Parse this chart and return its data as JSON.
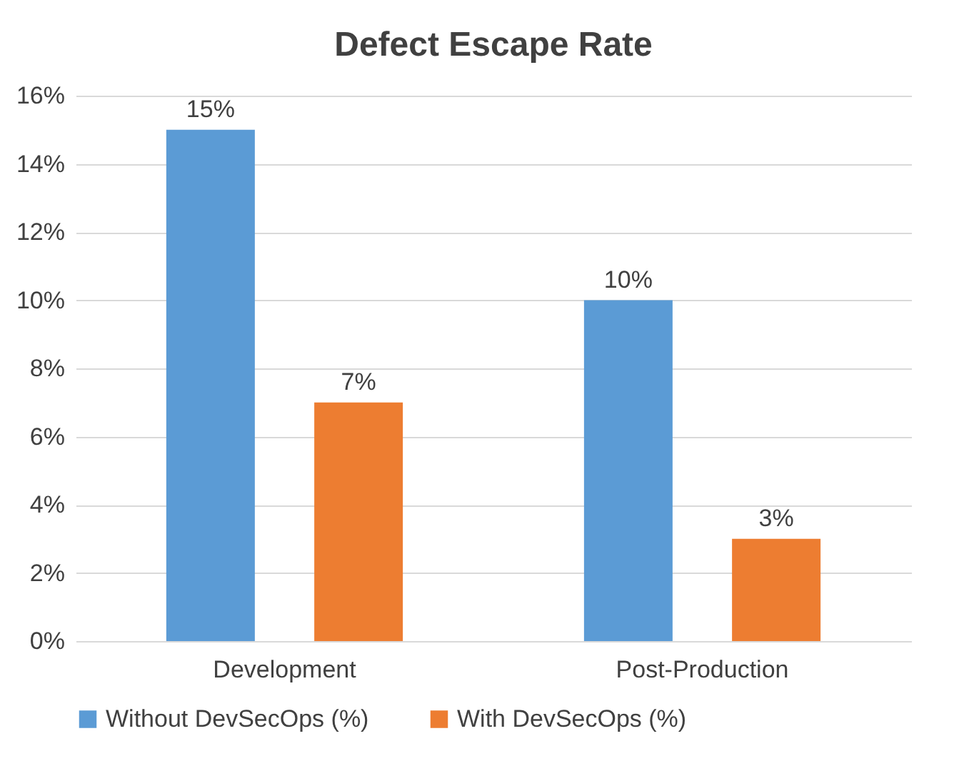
{
  "chart_data": {
    "type": "bar",
    "title": "Defect Escape Rate",
    "categories": [
      "Development",
      "Post-Production"
    ],
    "series": [
      {
        "name": "Without DevSecOps (%)",
        "color": "#5b9bd5",
        "values": [
          15,
          10
        ],
        "value_labels": [
          "15%",
          "10%"
        ]
      },
      {
        "name": "With DevSecOps (%)",
        "color": "#ed7d31",
        "values": [
          7,
          3
        ],
        "value_labels": [
          "7%",
          "3%"
        ]
      }
    ],
    "ylim": [
      0,
      16
    ],
    "yticks": [
      {
        "value": 0,
        "label": "0%"
      },
      {
        "value": 2,
        "label": "2%"
      },
      {
        "value": 4,
        "label": "4%"
      },
      {
        "value": 6,
        "label": "6%"
      },
      {
        "value": 8,
        "label": "8%"
      },
      {
        "value": 10,
        "label": "10%"
      },
      {
        "value": 12,
        "label": "12%"
      },
      {
        "value": 14,
        "label": "14%"
      },
      {
        "value": 16,
        "label": "16%"
      }
    ],
    "grid": "y",
    "legend": "bottom"
  }
}
